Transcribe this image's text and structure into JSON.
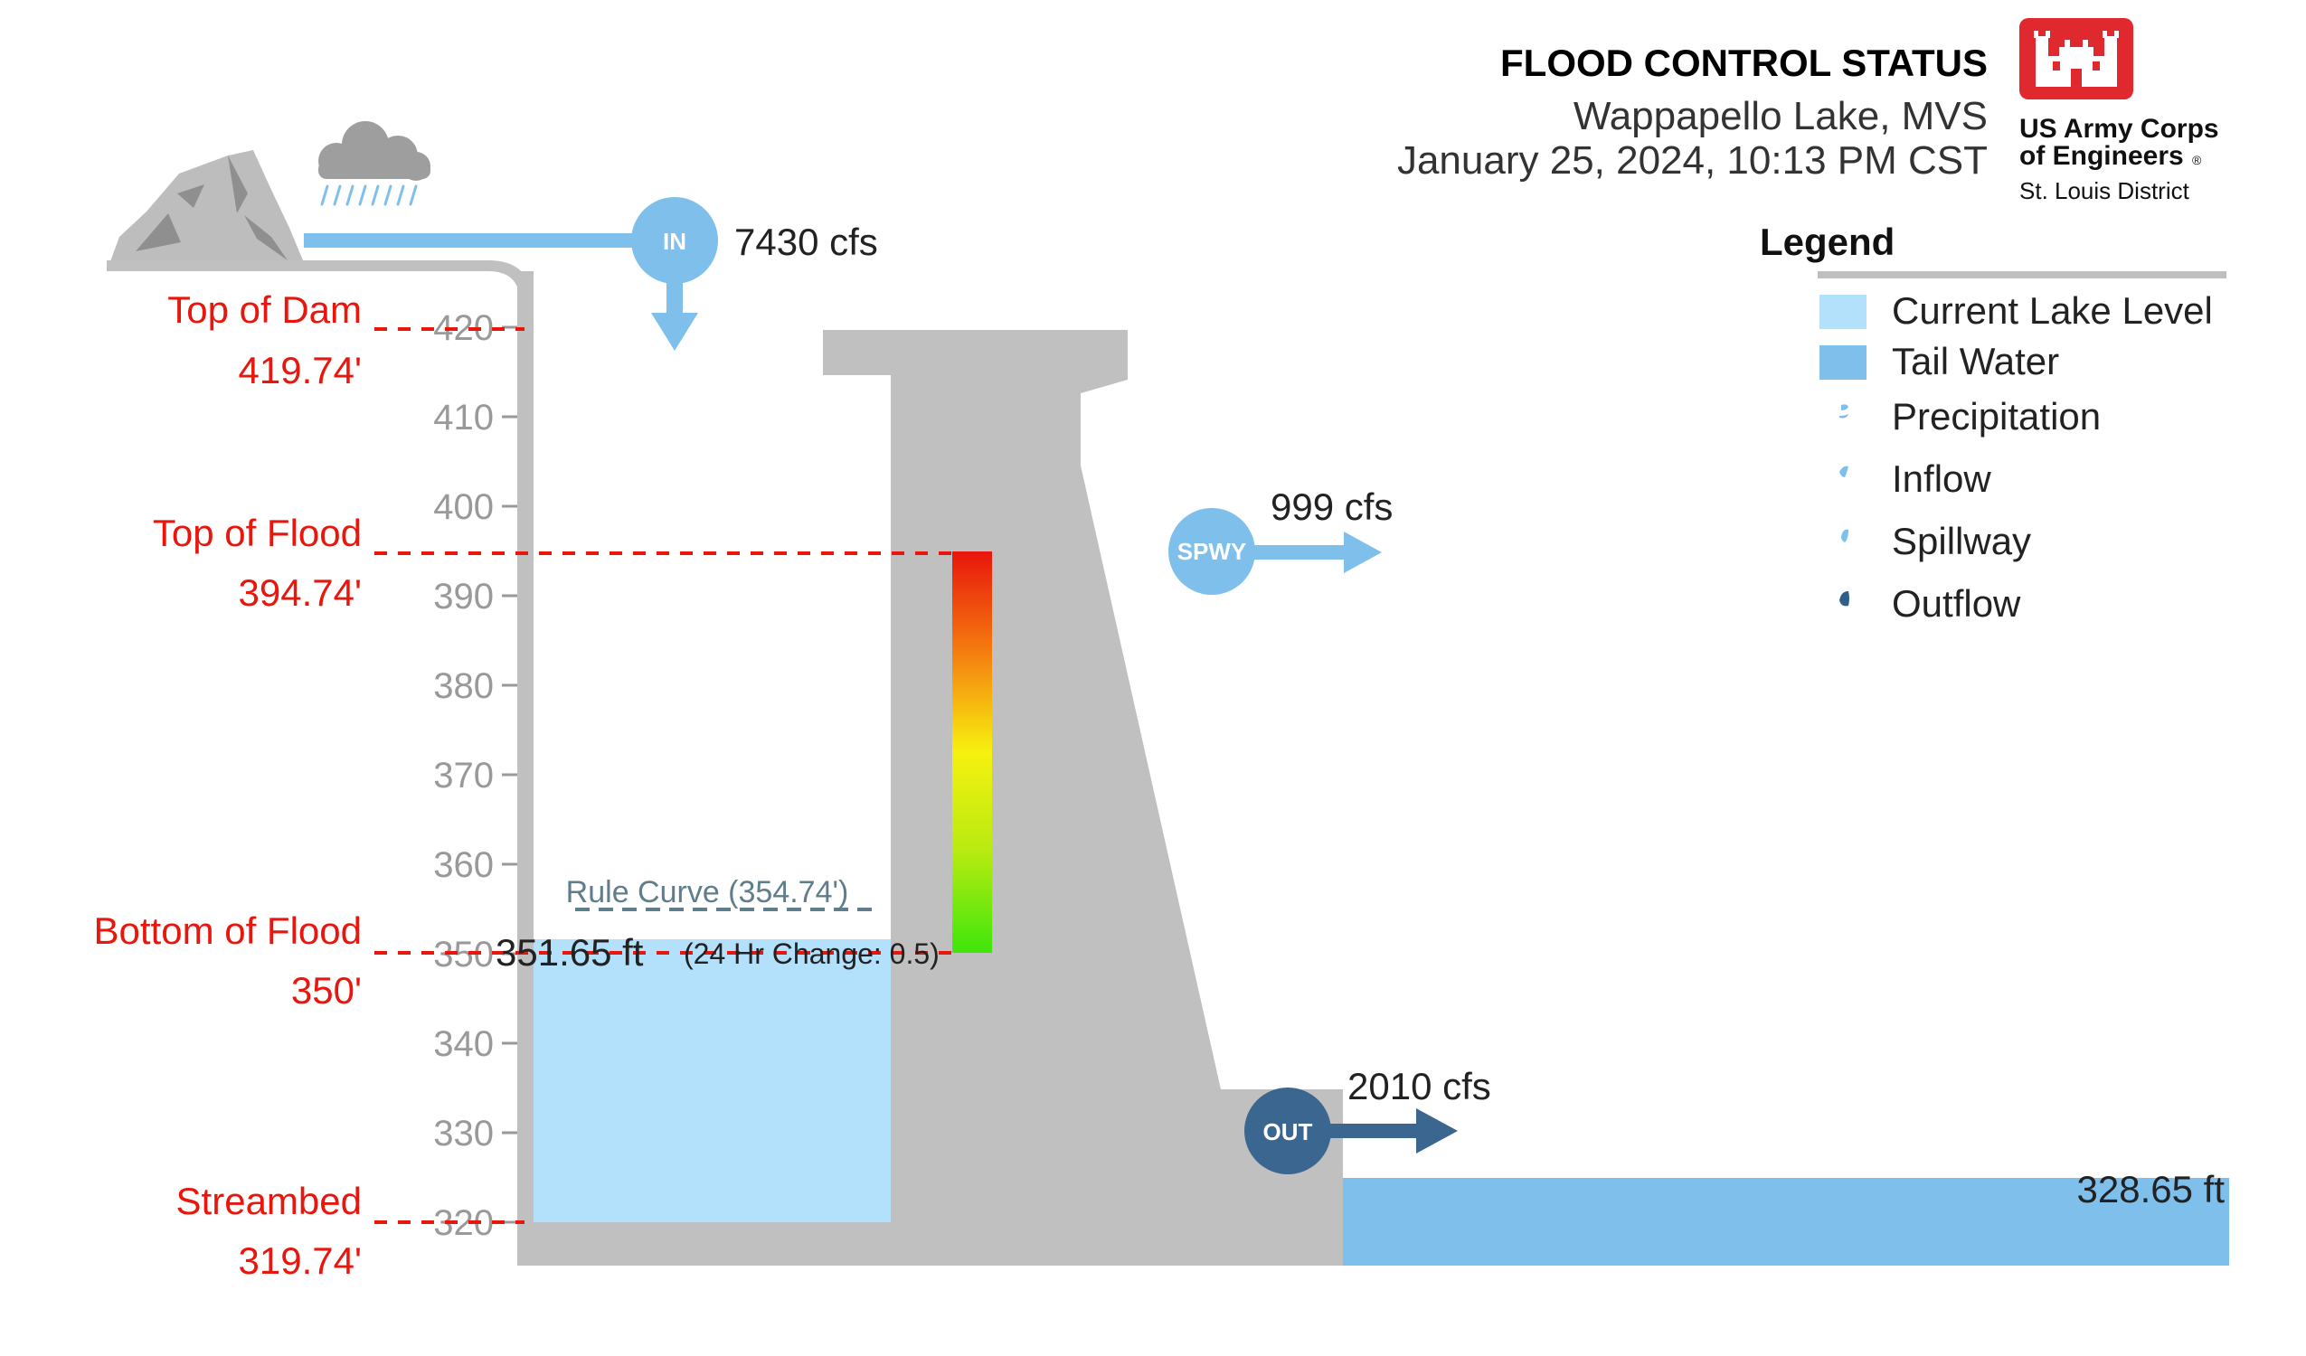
{
  "header": {
    "title": "FLOOD CONTROL STATUS",
    "location": "Wappapello Lake, MVS",
    "datetime": "January 25, 2024, 10:13 PM CST"
  },
  "logo": {
    "line1": "US Army Corps",
    "line2": "of Engineers",
    "registered": "®",
    "line3": "St. Louis District",
    "color": "#e0292f"
  },
  "levels": {
    "top_of_dam": {
      "label": "Top of Dam",
      "value": "419.74'"
    },
    "top_of_flood": {
      "label": "Top of Flood",
      "value": "394.74'"
    },
    "bottom_of_flood": {
      "label": "Bottom of Flood",
      "value": "350'"
    },
    "streambed": {
      "label": "Streambed",
      "value": "319.74'"
    }
  },
  "axis": {
    "ticks": [
      "420",
      "410",
      "400",
      "390",
      "380",
      "370",
      "360",
      "350",
      "340",
      "330",
      "320"
    ]
  },
  "rule_curve": {
    "label": "Rule Curve (354.74')"
  },
  "lake": {
    "level_label": "351.65 ft",
    "change_label": "(24 Hr Change: 0.5)"
  },
  "flows": {
    "inflow": {
      "badge": "IN",
      "value": "7430 cfs"
    },
    "spillway": {
      "badge": "SPWY",
      "value": "999 cfs"
    },
    "outflow": {
      "badge": "OUT",
      "value": "2010 cfs"
    }
  },
  "tailwater": {
    "level_label": "328.65 ft"
  },
  "legend": {
    "title": "Legend",
    "items": [
      {
        "label": "Current Lake Level",
        "color": "#b3e0fb"
      },
      {
        "label": "Tail Water",
        "color": "#7fbfeb"
      },
      {
        "label": "Precipitation",
        "color": "#7fbfeb"
      },
      {
        "label": "Inflow",
        "color": "#7fbfeb"
      },
      {
        "label": "Spillway",
        "color": "#7fbfeb"
      },
      {
        "label": "Outflow",
        "color": "#2e5f8a"
      }
    ]
  },
  "colors": {
    "lake": "#b3e0fb",
    "tailwater": "#7fbfeb",
    "dam": "#c0c0c0",
    "flow_light": "#7fbfeb",
    "flow_dark": "#3a6690",
    "threshold": "#e8160c"
  }
}
